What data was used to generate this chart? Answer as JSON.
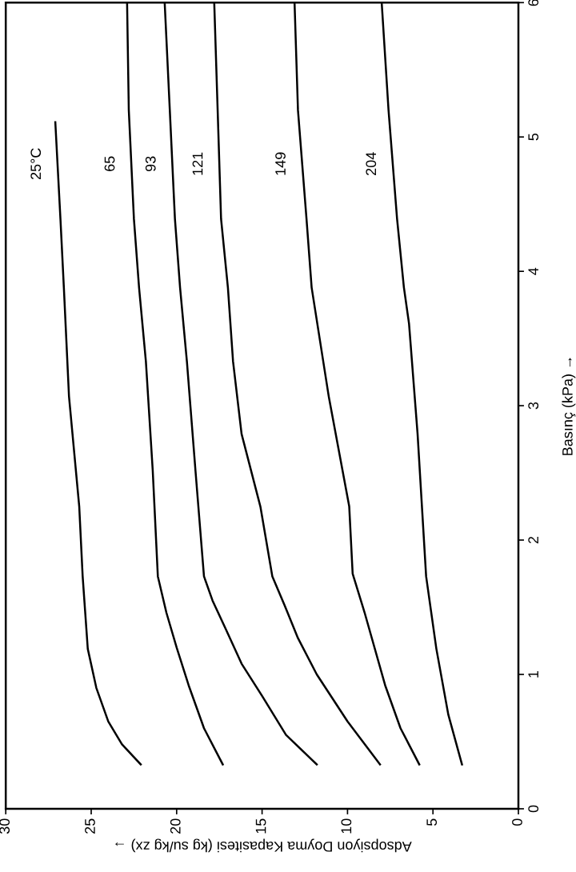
{
  "chart_data": {
    "type": "line",
    "xlabel": "Adsopsiyon Doyma Kapasitesi (kg su/kg zx) →",
    "ylabel": "Basınç (kPa) →",
    "xlim": [
      30,
      0
    ],
    "xticks": [
      30,
      25,
      20,
      15,
      10,
      5,
      0
    ],
    "ylim": [
      0,
      6
    ],
    "yticks": [
      0,
      1,
      2,
      3,
      4,
      5,
      6
    ],
    "grid": false,
    "legend": false,
    "marker": "none",
    "line_style": "solid",
    "series": [
      {
        "name": "25°C",
        "color": "#000000",
        "x": [
          22.1,
          23.2,
          24.0,
          24.7,
          25.2,
          25.5,
          25.7,
          26.3,
          26.6,
          26.8,
          27.1
        ],
        "values": [
          0.33,
          0.48,
          0.65,
          0.9,
          1.19,
          1.73,
          2.25,
          3.07,
          3.88,
          4.39,
          5.11
        ]
      },
      {
        "name": "65",
        "color": "#000000",
        "x": [
          17.3,
          18.4,
          19.3,
          20.0,
          20.6,
          21.1,
          21.4,
          21.8,
          22.2,
          22.5,
          22.8,
          22.9
        ],
        "values": [
          0.33,
          0.6,
          0.92,
          1.2,
          1.46,
          1.73,
          2.52,
          3.33,
          3.88,
          4.39,
          5.2,
          6.0
        ]
      },
      {
        "name": "93",
        "color": "#000000",
        "x": [
          11.8,
          13.6,
          15.0,
          16.2,
          17.1,
          17.9,
          18.4,
          18.9,
          19.4,
          19.8,
          20.1,
          20.4,
          20.7
        ],
        "values": [
          0.33,
          0.55,
          0.84,
          1.08,
          1.33,
          1.55,
          1.73,
          2.52,
          3.33,
          3.88,
          4.39,
          5.2,
          6.0
        ]
      },
      {
        "name": "121",
        "color": "#000000",
        "x": [
          8.1,
          10.0,
          11.8,
          12.9,
          13.7,
          14.4,
          15.1,
          16.2,
          16.7,
          17.0,
          17.4,
          17.6,
          17.8
        ],
        "values": [
          0.33,
          0.65,
          1.0,
          1.27,
          1.52,
          1.73,
          2.25,
          2.79,
          3.33,
          3.88,
          4.39,
          5.2,
          6.0
        ]
      },
      {
        "name": "149",
        "color": "#000000",
        "x": [
          5.8,
          6.9,
          7.8,
          9.0,
          9.7,
          9.9,
          11.1,
          12.1,
          12.4,
          12.9,
          13.1
        ],
        "values": [
          0.33,
          0.6,
          0.92,
          1.46,
          1.75,
          2.25,
          3.07,
          3.88,
          4.39,
          5.2,
          6.0
        ]
      },
      {
        "name": "204",
        "color": "#000000",
        "x": [
          3.3,
          4.1,
          4.8,
          5.4,
          5.9,
          6.4,
          6.7,
          7.1,
          7.6,
          8.0
        ],
        "values": [
          0.33,
          0.7,
          1.19,
          1.73,
          2.79,
          3.61,
          3.88,
          4.39,
          5.2,
          6.0
        ]
      }
    ]
  }
}
